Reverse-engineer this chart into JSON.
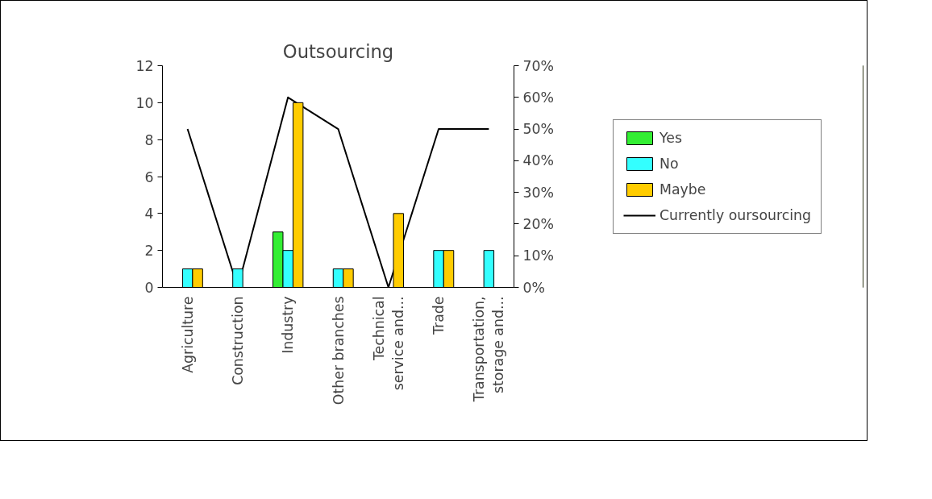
{
  "chart_data": {
    "type": "bar",
    "title": "Outsourcing",
    "categories": [
      "Agriculture",
      "Construction",
      "Industry",
      "Other branches",
      "Technical service and...",
      "Trade",
      "Transportation, storage and..."
    ],
    "series": [
      {
        "name": "Yes",
        "color": "#33ee33",
        "values": [
          null,
          null,
          3,
          null,
          null,
          null,
          null
        ]
      },
      {
        "name": "No",
        "color": "#33ffff",
        "values": [
          1,
          1,
          2,
          1,
          null,
          2,
          2
        ]
      },
      {
        "name": "Maybe",
        "color": "#ffcc00",
        "values": [
          1,
          null,
          10,
          1,
          4,
          2,
          null
        ]
      },
      {
        "name": "Currently oursourcing",
        "type": "line",
        "axis": "y2",
        "color": "#000000",
        "values": [
          50,
          0,
          60,
          50,
          0,
          50,
          50
        ]
      }
    ],
    "ylim": [
      0,
      12
    ],
    "yticks": [
      0,
      2,
      4,
      6,
      8,
      10,
      12
    ],
    "y2lim": [
      0,
      70
    ],
    "y2ticks": [
      {
        "value": 0,
        "label": "0%"
      },
      {
        "value": 10,
        "label": "10%"
      },
      {
        "value": 20,
        "label": "20%"
      },
      {
        "value": 30,
        "label": "30%"
      },
      {
        "value": 40,
        "label": "40%"
      },
      {
        "value": 50,
        "label": "50%"
      },
      {
        "value": 60,
        "label": "60%"
      },
      {
        "value": 70,
        "label": "70%"
      }
    ],
    "grid": false,
    "legend": "right"
  }
}
